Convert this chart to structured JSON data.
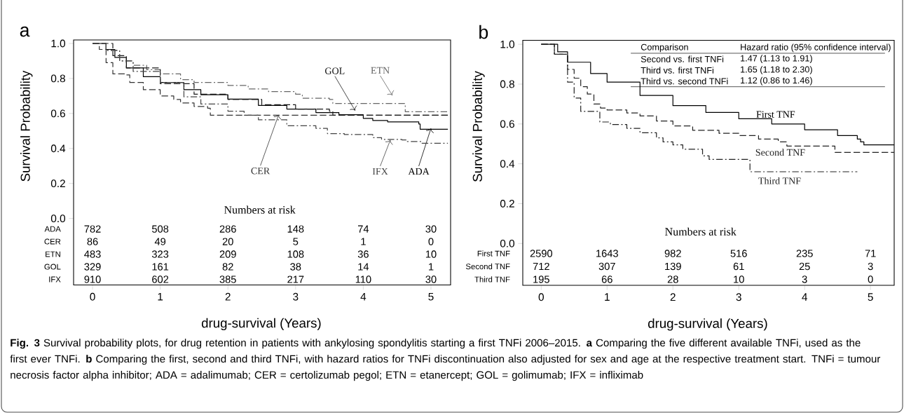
{
  "chart_data": [
    {
      "type": "step",
      "title": "a",
      "xlabel": "drug-survival (Years)",
      "ylabel": "Survival Probability",
      "xlim": [
        -0.28,
        5.29
      ],
      "ylim": [
        -0.38,
        1.02
      ],
      "xticks": [
        0,
        1,
        2,
        3,
        4,
        5
      ],
      "yticks": [
        {
          "value": 0,
          "label": "0.0"
        },
        {
          "value": 0.2,
          "label": "0.2"
        },
        {
          "value": 0.4,
          "label": "0.4"
        },
        {
          "value": 0.6,
          "label": "0.6"
        },
        {
          "value": 0.8,
          "label": "0.8"
        },
        {
          "value": 1,
          "label": "1.0"
        }
      ],
      "series": [
        {
          "name": "ADA",
          "color": "#000000",
          "line_style": "solid",
          "x": [
            0,
            0.2,
            0.33,
            0.5,
            0.75,
            1,
            1.35,
            1.6,
            2,
            2.45,
            2.87,
            3.3,
            3.64,
            4,
            4.14,
            4.36,
            4.82,
            4.84,
            5.25
          ],
          "values": [
            1,
            0.966,
            0.92,
            0.86,
            0.81,
            0.777,
            0.736,
            0.707,
            0.682,
            0.646,
            0.625,
            0.605,
            0.593,
            0.572,
            0.56,
            0.552,
            0.54,
            0.51,
            0.51
          ]
        },
        {
          "name": "CER",
          "color": "#333333",
          "line_style": "dashed",
          "x": [
            0,
            0.1,
            0.2,
            0.3,
            0.5,
            0.55,
            0.75,
            1,
            1.2,
            1.3,
            1.5,
            1.7,
            1.74,
            5.25
          ],
          "values": [
            1,
            0.966,
            0.89,
            0.826,
            0.82,
            0.777,
            0.736,
            0.7,
            0.68,
            0.66,
            0.64,
            0.63,
            0.59,
            0.59
          ]
        },
        {
          "name": "ETN",
          "color": "#666666",
          "line_style": "dashdot",
          "x": [
            0,
            0.2,
            0.4,
            0.6,
            0.8,
            1,
            1.3,
            1.5,
            2,
            2.3,
            2.6,
            3,
            3.1,
            3.5,
            3.55,
            4.62,
            5.25
          ],
          "values": [
            1,
            0.96,
            0.9,
            0.875,
            0.85,
            0.826,
            0.793,
            0.777,
            0.76,
            0.74,
            0.725,
            0.71,
            0.687,
            0.68,
            0.657,
            0.61,
            0.61
          ]
        },
        {
          "name": "GOL",
          "color": "#1a1a1a",
          "line_style": "dashed",
          "x": [
            0,
            0.3,
            0.5,
            1,
            1.5,
            2,
            2.5,
            3,
            3.5,
            3.55,
            5.25
          ],
          "values": [
            1,
            0.93,
            0.86,
            0.77,
            0.71,
            0.68,
            0.65,
            0.625,
            0.613,
            0.59,
            0.59
          ]
        },
        {
          "name": "IFX",
          "color": "#444444",
          "line_style": "dashdot",
          "x": [
            0,
            0.2,
            0.4,
            0.6,
            1,
            1.35,
            1.6,
            2,
            2.24,
            2.45,
            2.87,
            3.3,
            3.47,
            3.72,
            4.14,
            4.27,
            4.57,
            4.65,
            4.86,
            5.25
          ],
          "values": [
            1,
            0.96,
            0.9,
            0.84,
            0.777,
            0.695,
            0.654,
            0.613,
            0.59,
            0.564,
            0.53,
            0.515,
            0.485,
            0.48,
            0.462,
            0.452,
            0.449,
            0.44,
            0.43,
            0.43
          ]
        }
      ],
      "annotations": [
        "Numbers at risk",
        "ADA",
        "CER",
        "ETN",
        "GOL",
        "IFX",
        "782",
        "508",
        "286",
        "148",
        "74",
        "30",
        "86",
        "49",
        "20",
        "5",
        "1",
        "0",
        "483",
        "323",
        "209",
        "108",
        "36",
        "10",
        "329",
        "161",
        "82",
        "38",
        "14",
        "1",
        "910",
        "602",
        "385",
        "217",
        "110",
        "30",
        "**Fig. 3** Survival probability plots, for drug retention in patients with ankylosing spondylitis starting a first TNFi 2006–2015. **a** Comparing the five different available TNFi, used as the first ever TNFi. **b** Comparing the first, second and third TNFi, with hazard ratios for TNFi discontinuation also adjusted for sex and age at the respective treatment start. TNFi = tumour necrosis factor alpha inhibitor; ADA = adalimumab; CER = certolizumab pegol; ETN = etanercept; GOL = golimumab; IFX = infliximab"
      ]
    },
    {
      "type": "step",
      "title": "b",
      "xlabel": "drug-survival (Years)",
      "ylabel": "Survival Probability",
      "xlim": [
        -0.28,
        5.36
      ],
      "ylim": [
        -0.21,
        1.02
      ],
      "xticks": [
        0,
        1,
        2,
        3,
        4,
        5
      ],
      "yticks": [
        {
          "value": 0,
          "label": "0.0"
        },
        {
          "value": 0.2,
          "label": "0.2"
        },
        {
          "value": 0.4,
          "label": "0.4"
        },
        {
          "value": 0.6,
          "label": "0.6"
        },
        {
          "value": 0.8,
          "label": "0.8"
        },
        {
          "value": 1,
          "label": "1.0"
        }
      ],
      "series": [
        {
          "name": "First TNF",
          "color": "#000000",
          "line_style": "solid",
          "x": [
            0,
            0.25,
            0.4,
            0.75,
            1,
            1.5,
            2,
            2.5,
            3,
            3.5,
            4,
            4.5,
            4.8,
            4.85,
            4.9,
            5.36
          ],
          "values": [
            1,
            0.962,
            0.91,
            0.853,
            0.81,
            0.743,
            0.692,
            0.658,
            0.626,
            0.6,
            0.571,
            0.542,
            0.524,
            0.51,
            0.495,
            0.495
          ]
        },
        {
          "name": "Second TNF",
          "color": "#222222",
          "line_style": "dashed",
          "x": [
            0,
            0.2,
            0.4,
            0.5,
            0.6,
            0.7,
            0.8,
            0.9,
            1,
            1.3,
            1.5,
            1.75,
            2,
            2.3,
            2.7,
            3,
            3.3,
            3.6,
            3.73,
            4.46,
            5.36
          ],
          "values": [
            1,
            0.95,
            0.874,
            0.83,
            0.787,
            0.75,
            0.7,
            0.68,
            0.67,
            0.655,
            0.64,
            0.615,
            0.59,
            0.568,
            0.553,
            0.542,
            0.524,
            0.51,
            0.489,
            0.457,
            0.457
          ]
        },
        {
          "name": "Third TNF",
          "color": "#222222",
          "line_style": "dashdot",
          "x": [
            0,
            0.2,
            0.4,
            0.5,
            0.6,
            0.89,
            1.05,
            1.3,
            1.5,
            1.75,
            1.85,
            2,
            2.15,
            2.45,
            2.55,
            3.17,
            4.8
          ],
          "values": [
            1,
            0.95,
            0.81,
            0.73,
            0.663,
            0.61,
            0.597,
            0.578,
            0.556,
            0.53,
            0.51,
            0.495,
            0.473,
            0.44,
            0.422,
            0.36,
            0.36
          ]
        }
      ],
      "annotations": [
        "Numbers at risk",
        "First TNF",
        "Second TNF",
        "Third TNF",
        "2590",
        "1643",
        "982",
        "516",
        "235",
        "71",
        "712",
        "307",
        "139",
        "61",
        "25",
        "3",
        "195",
        "66",
        "28",
        "10",
        "3",
        "0",
        "Comparison",
        "Hazard ratio (95% confidence interval)",
        "Second vs. first TNFi",
        "1.47 (1.13 to 1.91)",
        "Third vs. first TNFi",
        "1.65 (1.18 to 2.30)",
        "Third vs. second TNFi",
        "1.12 (0.86 to 1.46)"
      ]
    }
  ]
}
